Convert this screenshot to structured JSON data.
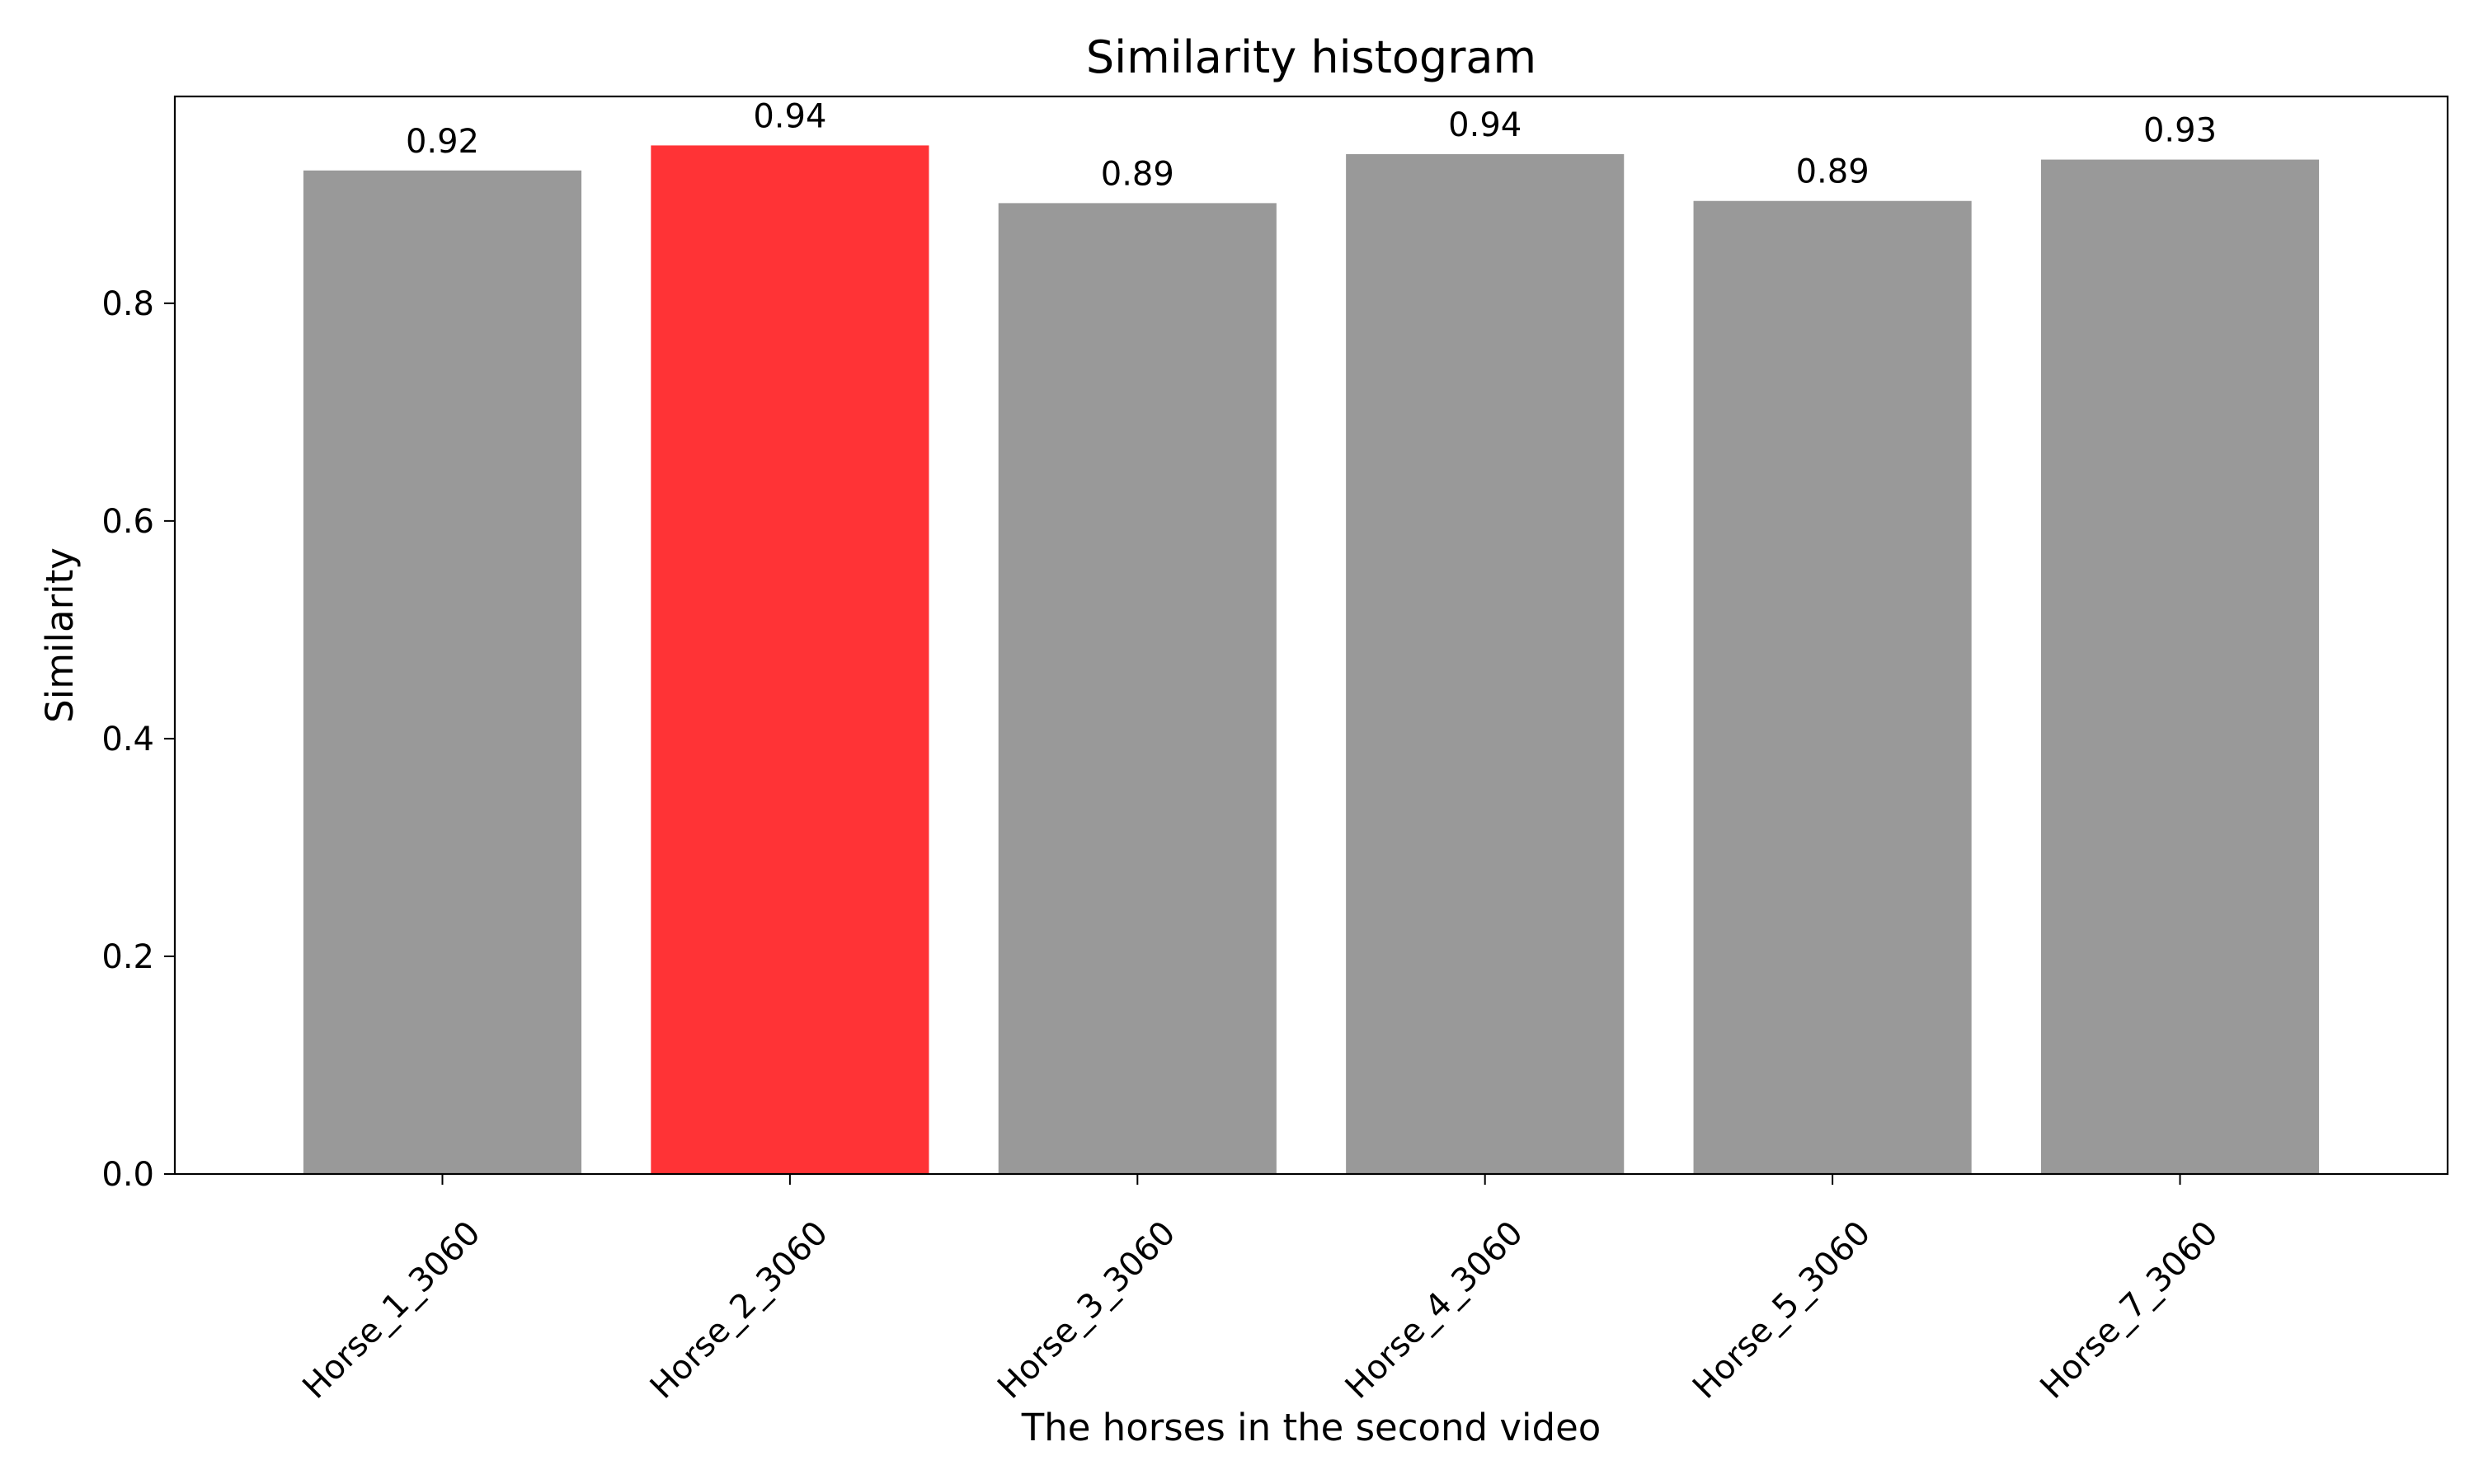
{
  "chart_data": {
    "type": "bar",
    "title": "Similarity histogram",
    "xlabel": "The horses in the second video",
    "ylabel": "Similarity",
    "categories": [
      "Horse_1_3060",
      "Horse_2_3060",
      "Horse_3_3060",
      "Horse_4_3060",
      "Horse_5_3060",
      "Horse_7_3060"
    ],
    "values": [
      0.922,
      0.945,
      0.892,
      0.937,
      0.894,
      0.932
    ],
    "value_labels": [
      "0.92",
      "0.94",
      "0.89",
      "0.94",
      "0.89",
      "0.93"
    ],
    "highlight_index": 1,
    "bar_color": "#999999",
    "highlight_color": "#ff3336",
    "ylim": [
      0,
      0.99
    ],
    "yticks": [
      0.0,
      0.2,
      0.4,
      0.6,
      0.8
    ],
    "ytick_labels": [
      "0.0",
      "0.2",
      "0.4",
      "0.6",
      "0.8"
    ],
    "grid": false,
    "legend": "none"
  }
}
